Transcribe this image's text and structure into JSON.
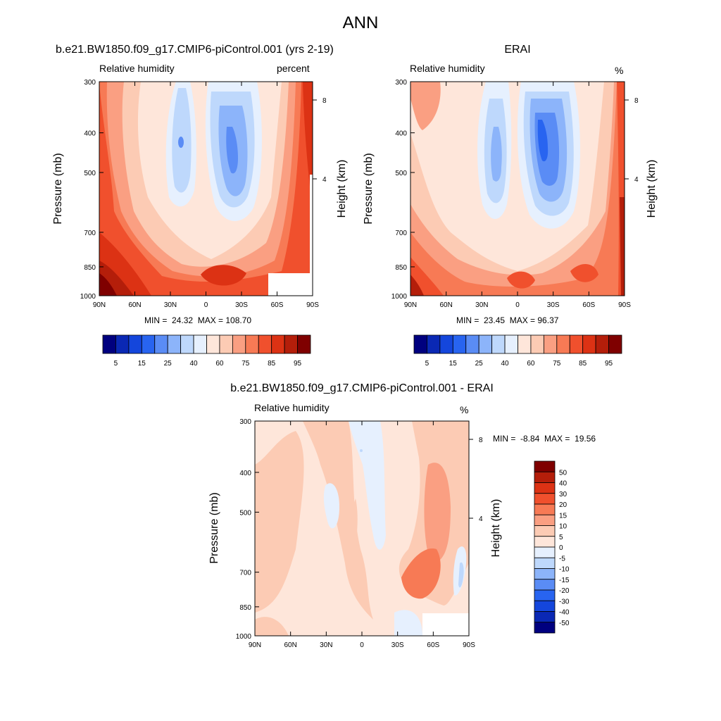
{
  "page_title": "ANN",
  "panels": [
    {
      "title": "b.e21.BW1850.f09_g17.CMIP6-piControl.001 (yrs 2-19)",
      "variable": "Relative humidity",
      "units": "percent",
      "ylabel": "Pressure (mb)",
      "ylabel_right": "Height (km)",
      "y_ticks": [
        "300",
        "400",
        "500",
        "700",
        "850",
        "1000"
      ],
      "height_ticks": [
        "8",
        "4"
      ],
      "x_ticks": [
        "90N",
        "60N",
        "30N",
        "0",
        "30S",
        "60S",
        "90S"
      ],
      "stats": "MIN =  24.32  MAX = 108.70",
      "colorbar_labels": [
        "5",
        "15",
        "25",
        "40",
        "60",
        "75",
        "85",
        "95"
      ]
    },
    {
      "title": "ERAI",
      "variable": "Relative humidity",
      "units": "%",
      "ylabel": "Pressure (mb)",
      "ylabel_right": "Height (km)",
      "y_ticks": [
        "300",
        "400",
        "500",
        "700",
        "850",
        "1000"
      ],
      "height_ticks": [
        "8",
        "4"
      ],
      "x_ticks": [
        "90N",
        "60N",
        "30N",
        "0",
        "30S",
        "60S",
        "90S"
      ],
      "stats": "MIN =  23.45  MAX = 96.37",
      "colorbar_labels": [
        "5",
        "15",
        "25",
        "40",
        "60",
        "75",
        "85",
        "95"
      ]
    },
    {
      "title": "b.e21.BW1850.f09_g17.CMIP6-piControl.001 - ERAI",
      "variable": "Relative humidity",
      "units": "%",
      "ylabel": "Pressure (mb)",
      "ylabel_right": "Height (km)",
      "y_ticks": [
        "300",
        "400",
        "500",
        "700",
        "850",
        "1000"
      ],
      "height_ticks": [
        "8",
        "4"
      ],
      "x_ticks": [
        "90N",
        "60N",
        "30N",
        "0",
        "30S",
        "60S",
        "90S"
      ],
      "stats": "MIN =  -8.84  MAX =  19.56",
      "colorbar_labels": [
        "50",
        "40",
        "30",
        "20",
        "15",
        "10",
        "5",
        "0",
        "-5",
        "-10",
        "-15",
        "-20",
        "-30",
        "-40",
        "-50"
      ]
    }
  ],
  "colors": {
    "abs_scale": [
      "#00007f",
      "#0a28b4",
      "#1446dc",
      "#2864f0",
      "#5a8cf5",
      "#8cb4fa",
      "#bed8fc",
      "#e6f0fe",
      "#fee6da",
      "#fccbb4",
      "#fa9f82",
      "#f77a55",
      "#f0502d",
      "#dc3214",
      "#b41e0a",
      "#7f0000"
    ],
    "diff_scale": [
      "#00007f",
      "#0a28b4",
      "#1446dc",
      "#2864f0",
      "#5a8cf5",
      "#8cb4fa",
      "#bed8fc",
      "#e6f0fe",
      "#fee6da",
      "#fccbb4",
      "#fa9f82",
      "#f77a55",
      "#f0502d",
      "#dc3214",
      "#b41e0a",
      "#7f0000"
    ]
  },
  "chart_data": [
    {
      "type": "heatmap",
      "title": "b.e21.BW1850.f09_g17.CMIP6-piControl.001 (yrs 2-19)",
      "variable": "Relative humidity (percent)",
      "x": "latitude, 90N to 90S",
      "y": "pressure (mb), 300 to 1000",
      "min": 24.32,
      "max": 108.7,
      "levels": [
        5,
        10,
        15,
        20,
        25,
        30,
        40,
        50,
        60,
        70,
        75,
        80,
        85,
        90,
        95
      ],
      "ylim": [
        1000,
        300
      ],
      "xlim": [
        "90N",
        "90S"
      ]
    },
    {
      "type": "heatmap",
      "title": "ERAI",
      "variable": "Relative humidity (%)",
      "x": "latitude, 90N to 90S",
      "y": "pressure (mb), 300 to 1000",
      "min": 23.45,
      "max": 96.37,
      "levels": [
        5,
        10,
        15,
        20,
        25,
        30,
        40,
        50,
        60,
        70,
        75,
        80,
        85,
        90,
        95
      ],
      "ylim": [
        1000,
        300
      ],
      "xlim": [
        "90N",
        "90S"
      ]
    },
    {
      "type": "heatmap",
      "title": "b.e21.BW1850.f09_g17.CMIP6-piControl.001 - ERAI",
      "variable": "Relative humidity (%)",
      "x": "latitude, 90N to 90S",
      "y": "pressure (mb), 300 to 1000",
      "min": -8.84,
      "max": 19.56,
      "levels": [
        -50,
        -40,
        -30,
        -20,
        -15,
        -10,
        -5,
        0,
        5,
        10,
        15,
        20,
        30,
        40,
        50
      ],
      "ylim": [
        1000,
        300
      ],
      "xlim": [
        "90N",
        "90S"
      ]
    }
  ]
}
